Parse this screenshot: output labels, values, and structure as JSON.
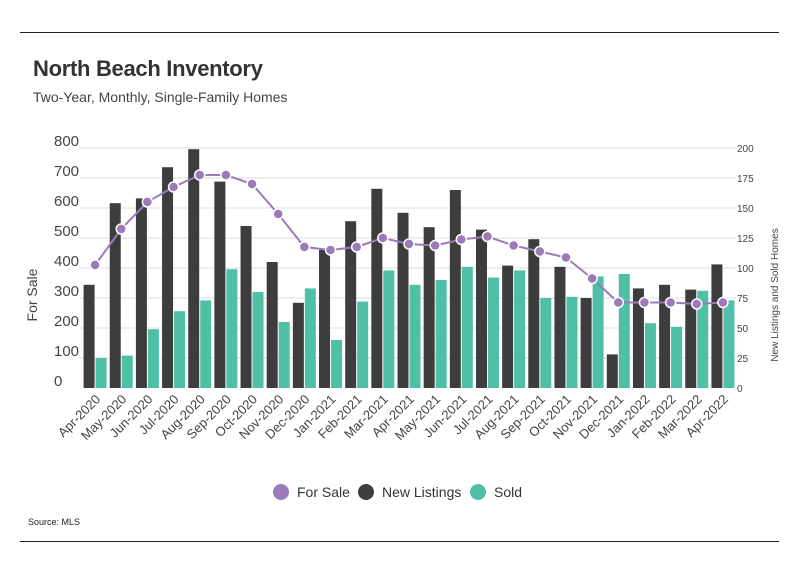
{
  "title": "North Beach Inventory",
  "subtitle": "Two-Year, Monthly, Single-Family Homes",
  "source": "Source:  MLS",
  "colors": {
    "for_sale": "#9b7ab8",
    "new_listings": "#3d3d3d",
    "sold": "#4fbfa8",
    "grid": "#dddddd"
  },
  "chart_data": {
    "type": "bar",
    "categories": [
      "Apr-2020",
      "May-2020",
      "Jun-2020",
      "Jul-2020",
      "Aug-2020",
      "Sep-2020",
      "Oct-2020",
      "Nov-2020",
      "Dec-2020",
      "Jan-2021",
      "Feb-2021",
      "Mar-2021",
      "Apr-2021",
      "May-2021",
      "Jun-2021",
      "Jul-2021",
      "Aug-2021",
      "Sep-2021",
      "Oct-2021",
      "Nov-2021",
      "Dec-2021",
      "Jan-2022",
      "Feb-2022",
      "Mar-2022",
      "Apr-2022"
    ],
    "y_left": {
      "label": "For Sale",
      "ylim": [
        0,
        800
      ],
      "ticks": [
        "0",
        "100",
        "200",
        "300",
        "400",
        "500",
        "600",
        "700",
        "800"
      ]
    },
    "y_right": {
      "label": "New Listings and Sold Homes",
      "ylim": [
        0,
        200
      ],
      "ticks": [
        "0",
        "25",
        "50",
        "75",
        "100",
        "125",
        "150",
        "175",
        "200"
      ]
    },
    "series": [
      {
        "name": "For Sale",
        "kind": "line",
        "axis": "left",
        "values": [
          410,
          530,
          620,
          670,
          710,
          710,
          680,
          580,
          470,
          460,
          470,
          500,
          480,
          475,
          495,
          505,
          475,
          455,
          435,
          365,
          285,
          285,
          285,
          280,
          285
        ]
      },
      {
        "name": "New Listings",
        "kind": "bar",
        "axis": "right",
        "values": [
          86,
          154,
          158,
          184,
          199,
          172,
          135,
          105,
          71,
          115,
          139,
          166,
          146,
          134,
          165,
          132,
          102,
          124,
          101,
          75,
          28,
          83,
          86,
          82,
          103
        ]
      },
      {
        "name": "Sold",
        "kind": "bar",
        "axis": "right",
        "values": [
          25,
          27,
          49,
          64,
          73,
          99,
          80,
          55,
          83,
          40,
          72,
          98,
          86,
          90,
          101,
          92,
          98,
          75,
          76,
          93,
          95,
          54,
          51,
          81,
          73
        ]
      }
    ],
    "legend": {
      "position": "bottom",
      "items": [
        "For Sale",
        "New Listings",
        "Sold"
      ]
    },
    "grid": true
  }
}
